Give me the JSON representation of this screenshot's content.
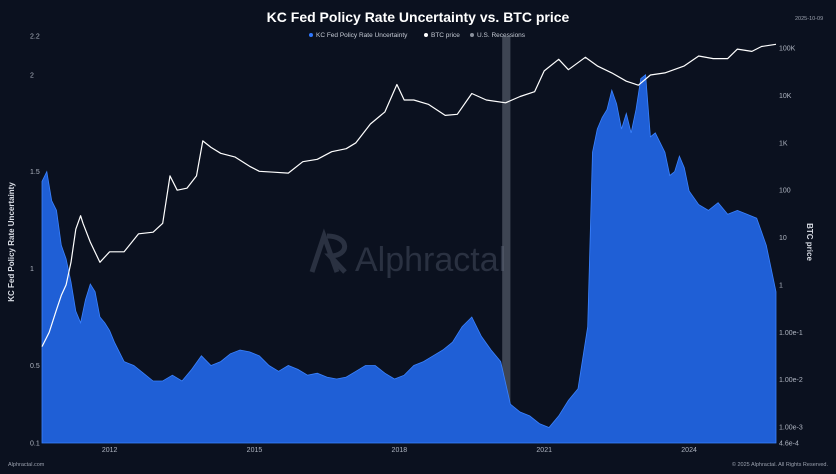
{
  "header": {
    "title": "KC Fed Policy Rate Uncertainty vs. BTC price",
    "date": "2025-10-09"
  },
  "footer": {
    "source": "Alphractal.com",
    "copyright": "© 2025 Alphractal. All Rights Reserved."
  },
  "watermark": "Alphractal",
  "chart_data": {
    "type": "area",
    "title": "KC Fed Policy Rate Uncertainty vs. BTC price",
    "legend": {
      "placement": "top-center",
      "entries": [
        "KC Fed Policy Rate Uncertainty",
        "BTC price",
        "U.S. Recessions"
      ]
    },
    "grid": false,
    "x_range": [
      2010.6,
      2025.8
    ],
    "x_ticks": [
      2012,
      2015,
      2018,
      2021,
      2024
    ],
    "y_left": {
      "label": "KC Fed Policy Rate Uncertainty",
      "range": [
        0.1,
        2.2
      ],
      "ticks": [
        0.1,
        0.5,
        1,
        1.5,
        2,
        2.2
      ]
    },
    "y_right": {
      "label": "BTC price",
      "scale": "log",
      "range": [
        0.00046,
        180000
      ],
      "ticks": [
        {
          "value": 0.00046,
          "label": "4.6e-4"
        },
        {
          "value": 0.001,
          "label": "1.00e-3"
        },
        {
          "value": 0.01,
          "label": "1.00e-2"
        },
        {
          "value": 0.1,
          "label": "1.00e-1"
        },
        {
          "value": 1,
          "label": "1"
        },
        {
          "value": 10,
          "label": "10"
        },
        {
          "value": 100,
          "label": "100"
        },
        {
          "value": 1000,
          "label": "1K"
        },
        {
          "value": 10000,
          "label": "10K"
        },
        {
          "value": 100000,
          "label": "100K"
        }
      ]
    },
    "recessions": [
      {
        "start": 2020.13,
        "end": 2020.3
      }
    ],
    "series": [
      {
        "name": "KC Fed Policy Rate Uncertainty",
        "axis": "left",
        "color": "#1f5fd6",
        "x": [
          2010.6,
          2010.7,
          2010.8,
          2010.9,
          2011.0,
          2011.1,
          2011.2,
          2011.3,
          2011.4,
          2011.5,
          2011.6,
          2011.7,
          2011.8,
          2011.9,
          2012.0,
          2012.1,
          2012.3,
          2012.5,
          2012.7,
          2012.9,
          2013.1,
          2013.3,
          2013.5,
          2013.7,
          2013.9,
          2014.1,
          2014.3,
          2014.5,
          2014.7,
          2014.9,
          2015.1,
          2015.3,
          2015.5,
          2015.7,
          2015.9,
          2016.1,
          2016.3,
          2016.5,
          2016.7,
          2016.9,
          2017.1,
          2017.3,
          2017.5,
          2017.7,
          2017.9,
          2018.1,
          2018.3,
          2018.5,
          2018.7,
          2018.9,
          2019.1,
          2019.3,
          2019.5,
          2019.7,
          2019.9,
          2020.1,
          2020.3,
          2020.5,
          2020.7,
          2020.9,
          2021.1,
          2021.3,
          2021.5,
          2021.7,
          2021.9,
          2022.0,
          2022.1,
          2022.2,
          2022.3,
          2022.4,
          2022.5,
          2022.6,
          2022.7,
          2022.8,
          2022.9,
          2023.0,
          2023.1,
          2023.2,
          2023.3,
          2023.4,
          2023.5,
          2023.6,
          2023.7,
          2023.8,
          2023.9,
          2024.0,
          2024.2,
          2024.4,
          2024.6,
          2024.8,
          2025.0,
          2025.2,
          2025.4,
          2025.6,
          2025.8
        ],
        "y": [
          1.45,
          1.5,
          1.35,
          1.3,
          1.12,
          1.05,
          0.93,
          0.78,
          0.72,
          0.84,
          0.92,
          0.88,
          0.75,
          0.72,
          0.68,
          0.62,
          0.52,
          0.5,
          0.46,
          0.42,
          0.42,
          0.45,
          0.42,
          0.48,
          0.55,
          0.5,
          0.52,
          0.56,
          0.58,
          0.57,
          0.55,
          0.5,
          0.47,
          0.5,
          0.48,
          0.45,
          0.46,
          0.44,
          0.43,
          0.44,
          0.47,
          0.5,
          0.5,
          0.46,
          0.43,
          0.45,
          0.5,
          0.52,
          0.55,
          0.58,
          0.62,
          0.7,
          0.75,
          0.65,
          0.58,
          0.52,
          0.3,
          0.26,
          0.24,
          0.2,
          0.18,
          0.24,
          0.32,
          0.38,
          0.7,
          1.6,
          1.72,
          1.78,
          1.82,
          1.92,
          1.85,
          1.72,
          1.8,
          1.7,
          1.82,
          1.98,
          2.0,
          1.68,
          1.7,
          1.65,
          1.6,
          1.48,
          1.5,
          1.58,
          1.52,
          1.4,
          1.33,
          1.3,
          1.34,
          1.28,
          1.3,
          1.28,
          1.26,
          1.12,
          0.88
        ]
      },
      {
        "name": "BTC price",
        "axis": "right",
        "color": "#ffffff",
        "x": [
          2010.6,
          2010.75,
          2010.9,
          2011.0,
          2011.1,
          2011.2,
          2011.3,
          2011.4,
          2011.45,
          2011.6,
          2011.8,
          2012.0,
          2012.3,
          2012.6,
          2012.9,
          2013.1,
          2013.25,
          2013.4,
          2013.6,
          2013.8,
          2013.93,
          2014.1,
          2014.3,
          2014.6,
          2014.9,
          2015.1,
          2015.4,
          2015.7,
          2016.0,
          2016.3,
          2016.6,
          2016.9,
          2017.1,
          2017.4,
          2017.7,
          2017.95,
          2018.1,
          2018.3,
          2018.6,
          2018.95,
          2019.2,
          2019.5,
          2019.8,
          2020.2,
          2020.5,
          2020.8,
          2021.0,
          2021.3,
          2021.5,
          2021.85,
          2022.1,
          2022.4,
          2022.7,
          2022.95,
          2023.2,
          2023.5,
          2023.9,
          2024.2,
          2024.5,
          2024.8,
          2025.0,
          2025.3,
          2025.5,
          2025.8
        ],
        "y": [
          0.05,
          0.1,
          0.3,
          0.6,
          1.0,
          3.0,
          15,
          29,
          20,
          8,
          3,
          5,
          5,
          12,
          13,
          20,
          200,
          100,
          110,
          200,
          1100,
          800,
          600,
          500,
          320,
          250,
          240,
          230,
          400,
          450,
          650,
          750,
          1000,
          2500,
          4500,
          17000,
          8000,
          8000,
          6500,
          3800,
          4000,
          11000,
          8000,
          7000,
          9500,
          12000,
          33000,
          58000,
          35000,
          64000,
          42000,
          30000,
          20000,
          16500,
          27000,
          30000,
          42000,
          68000,
          60000,
          60000,
          95000,
          85000,
          108000,
          120000
        ]
      }
    ]
  }
}
